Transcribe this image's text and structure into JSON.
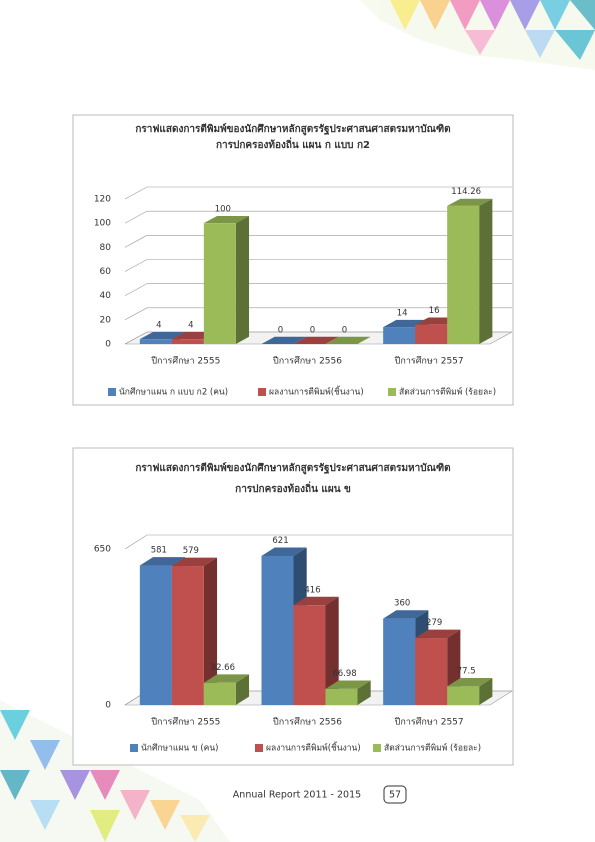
{
  "chart_data": [
    {
      "type": "bar3d",
      "title": "กราฟแสดงการตีพิมพ์ของนักศึกษาหลักสูตรรัฐประศาสนศาสตรมหาบัณฑิต",
      "subtitle": "การปกครองท้องถิ่น แผน ก แบบ ก2",
      "categories": [
        "ปีการศึกษา 2555",
        "ปีการศึกษา 2556",
        "ปีการศึกษา 2557"
      ],
      "series": [
        {
          "name": "นักศึกษาแผน ก แบบ ก2 (คน)",
          "color": "#4f81bd",
          "values": [
            4,
            0,
            14
          ]
        },
        {
          "name": "ผลงานการตีพิมพ์(ชิ้นงาน)",
          "color": "#c0504d",
          "values": [
            4,
            0,
            16
          ]
        },
        {
          "name": "สัดส่วนการตีพิมพ์ (ร้อยละ)",
          "color": "#9bbb59",
          "values": [
            100,
            0,
            114.26
          ]
        }
      ],
      "ylim": [
        0,
        120
      ],
      "yticks": [
        0,
        20,
        40,
        60,
        80,
        100,
        120
      ],
      "grid": true,
      "legend": "bottom"
    },
    {
      "type": "bar3d",
      "title": "กราฟแสดงการตีพิมพ์ของนักศึกษาหลักสูตรรัฐประศาสนศาสตรมหาบัณฑิต",
      "subtitle": "การปกครองท้องถิ่น แผน ข",
      "categories": [
        "ปีการศึกษา 2555",
        "ปีการศึกษา 2556",
        "ปีการศึกษา 2557"
      ],
      "series": [
        {
          "name": "นักศึกษาแผน ข (คน)",
          "color": "#4f81bd",
          "values": [
            581,
            621,
            360
          ]
        },
        {
          "name": "ผลงานการตีพิมพ์(ชิ้นงาน)",
          "color": "#c0504d",
          "values": [
            579,
            416,
            279
          ]
        },
        {
          "name": "สัดส่วนการตีพิมพ์ (ร้อยละ)",
          "color": "#9bbb59",
          "values": [
            92.66,
            66.98,
            77.5
          ]
        }
      ],
      "ylim": [
        0,
        650
      ],
      "yticks": [
        0,
        650
      ],
      "grid": true,
      "legend": "bottom"
    }
  ],
  "footer": {
    "text": "Annual Report 2011 - 2015",
    "page": "57"
  }
}
